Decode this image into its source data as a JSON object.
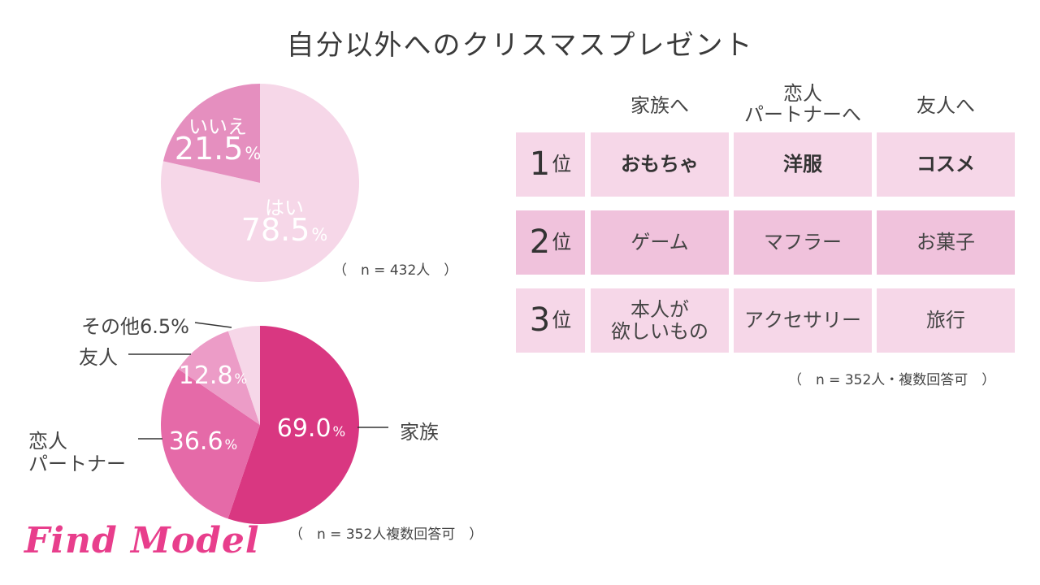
{
  "title": "自分以外へのクリスマスプレゼント",
  "chart_data": [
    {
      "type": "pie",
      "title": "",
      "slices": [
        {
          "label": "はい",
          "value": 78.5,
          "unit": "%",
          "color": "#f6d7e8"
        },
        {
          "label": "いいえ",
          "value": 21.5,
          "unit": "%",
          "color": "#e58fbf"
        }
      ],
      "note": "（　n = 432人　）"
    },
    {
      "type": "pie",
      "title": "",
      "slices": [
        {
          "label": "家族",
          "value": 69.0,
          "unit": "%",
          "color": "#d93781"
        },
        {
          "label": "恋人\nパートナー",
          "value": 36.6,
          "unit": "%",
          "color": "#e56aa8"
        },
        {
          "label": "友人",
          "value": 12.8,
          "unit": "%",
          "color": "#ec9cc7"
        },
        {
          "label": "その他",
          "value": 6.5,
          "unit": "%",
          "color": "#f6d7e8"
        }
      ],
      "outer_labels": {
        "other": "その他6.5%",
        "friend": "友人",
        "partner_line1": "恋人",
        "partner_line2": "パートナー",
        "family": "家族"
      },
      "note": "（　n = 352人複数回答可　）"
    },
    {
      "type": "table",
      "columns": [
        "家族へ",
        "恋人\nパートナーへ",
        "友人へ"
      ],
      "column_lines": [
        [
          "家族へ"
        ],
        [
          "恋人",
          "パートナーへ"
        ],
        [
          "友人へ"
        ]
      ],
      "rows": [
        {
          "rank": "1",
          "suffix": "位",
          "cells": [
            "おもちゃ",
            "洋服",
            "コスメ"
          ],
          "cell_lines": [
            [
              "おもちゃ"
            ],
            [
              "洋服"
            ],
            [
              "コスメ"
            ]
          ]
        },
        {
          "rank": "2",
          "suffix": "位",
          "cells": [
            "ゲーム",
            "マフラー",
            "お菓子"
          ],
          "cell_lines": [
            [
              "ゲーム"
            ],
            [
              "マフラー"
            ],
            [
              "お菓子"
            ]
          ]
        },
        {
          "rank": "3",
          "suffix": "位",
          "cells": [
            "本人が欲しいもの",
            "アクセサリー",
            "旅行"
          ],
          "cell_lines": [
            [
              "本人が",
              "欲しいもの"
            ],
            [
              "アクセサリー"
            ],
            [
              "旅行"
            ]
          ]
        }
      ],
      "note": "（　n = 352人・複数回答可　）"
    }
  ],
  "logo": "Find Model",
  "colors": {
    "light": "#f6d7e8",
    "mid": "#f0c2dc",
    "accent": "#d93781",
    "logo": "#e83e8c"
  }
}
